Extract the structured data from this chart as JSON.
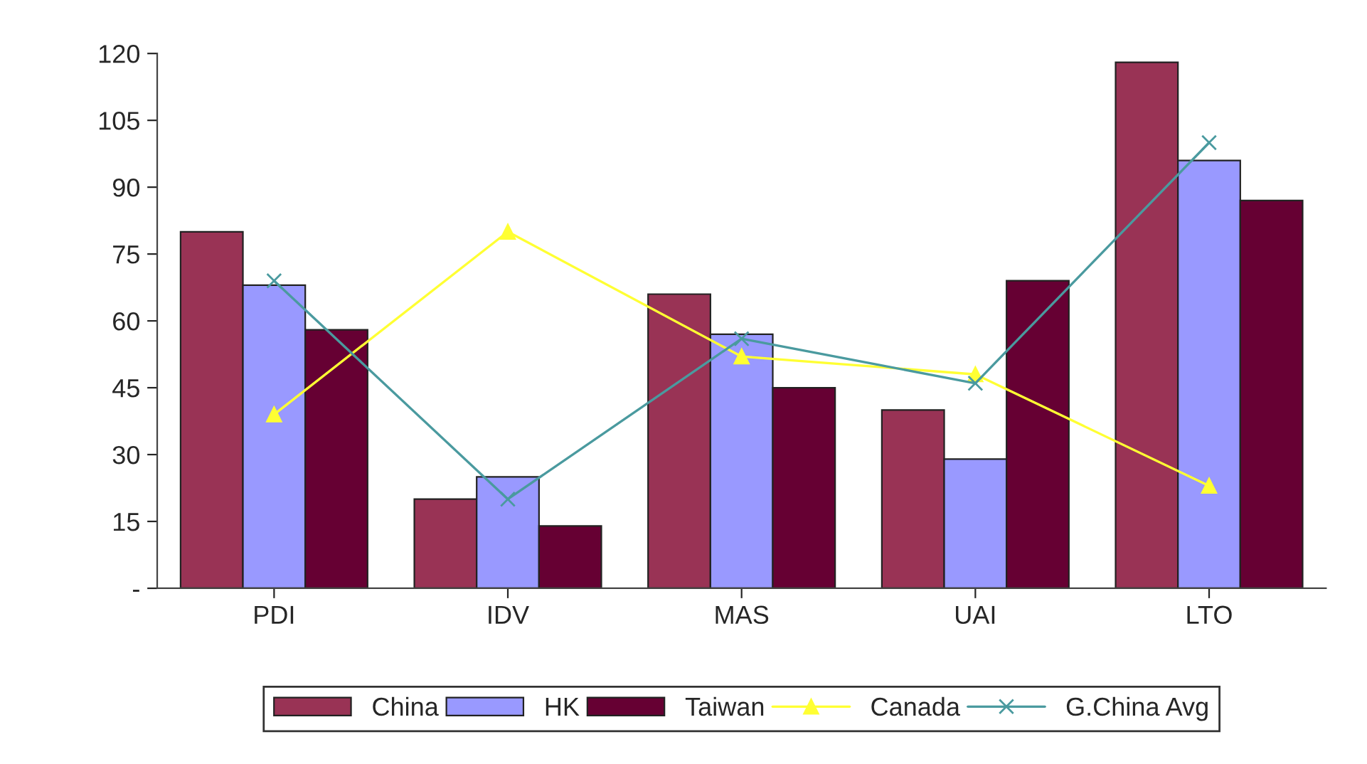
{
  "chart_data": {
    "type": "bar",
    "categories": [
      "PDI",
      "IDV",
      "MAS",
      "UAI",
      "LTO"
    ],
    "series": [
      {
        "name": "China",
        "color": "#993355",
        "values": [
          80,
          20,
          66,
          40,
          118
        ]
      },
      {
        "name": "HK",
        "color": "#9999ff",
        "values": [
          68,
          25,
          57,
          29,
          96
        ]
      },
      {
        "name": "Taiwan",
        "color": "#660033",
        "values": [
          58,
          14,
          45,
          69,
          87
        ]
      },
      {
        "name": "Canada",
        "type": "line",
        "color": "#ffff33",
        "marker": "triangle",
        "values": [
          39,
          80,
          52,
          48,
          23
        ]
      },
      {
        "name": "G.China Avg",
        "type": "line",
        "color": "#4a9a9f",
        "marker": "cross",
        "values": [
          69,
          20,
          56,
          46,
          100
        ]
      }
    ],
    "ylim": [
      0,
      120
    ],
    "yticks": [
      {
        "value": 0,
        "label": "-"
      },
      15,
      30,
      45,
      60,
      75,
      90,
      105,
      120
    ],
    "grid": false,
    "legend": "bottom",
    "line_style": "solid"
  }
}
